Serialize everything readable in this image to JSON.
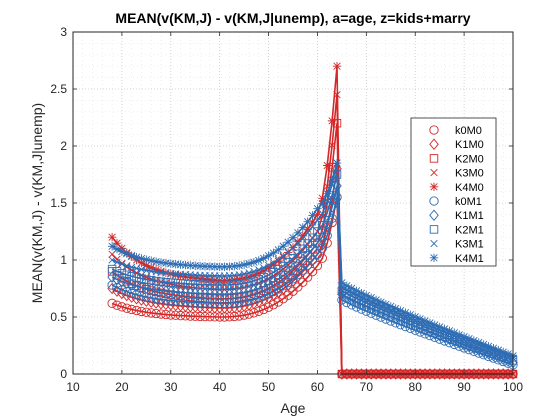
{
  "chart_data": {
    "type": "scatter",
    "title": "MEAN(v(KM,J) - v(KM,J|unemp), a=age, z=kids+marry",
    "xlabel": "Age",
    "ylabel": "MEAN(v(KM,J) - v(KM,J|unemp)",
    "xlim": [
      10,
      100
    ],
    "ylim": [
      0,
      3
    ],
    "xticks": [
      10,
      20,
      30,
      40,
      50,
      60,
      70,
      80,
      90,
      100
    ],
    "yticks": [
      0,
      0.5,
      1,
      1.5,
      2,
      2.5,
      3
    ],
    "grid": "on (dotted, with minor)",
    "legend_position": "right",
    "colors": {
      "M0": "#d62728",
      "M1": "#2e6db4"
    },
    "x_range": [
      18,
      100
    ],
    "series": [
      {
        "name": "k0M0",
        "marker": "circle",
        "color": "#d62728",
        "start": 0.62,
        "flat": 0.5,
        "pre": 0.95,
        "peak": 1.55,
        "post": 0.0,
        "end": 0.0
      },
      {
        "name": "K1M0",
        "marker": "diamond",
        "color": "#d62728",
        "start": 0.75,
        "flat": 0.58,
        "pre": 1.05,
        "peak": 1.8,
        "post": 0.0,
        "end": 0.0
      },
      {
        "name": "K2M0",
        "marker": "square",
        "color": "#d62728",
        "start": 0.9,
        "flat": 0.66,
        "pre": 1.15,
        "peak": 2.2,
        "post": 0.0,
        "end": 0.0
      },
      {
        "name": "K3M0",
        "marker": "x",
        "color": "#d62728",
        "start": 1.05,
        "flat": 0.74,
        "pre": 1.25,
        "peak": 2.45,
        "post": 0.0,
        "end": 0.0
      },
      {
        "name": "K4M0",
        "marker": "asterisk",
        "color": "#d62728",
        "start": 1.2,
        "flat": 0.82,
        "pre": 1.4,
        "peak": 2.7,
        "post": 0.0,
        "end": 0.0
      },
      {
        "name": "k0M1",
        "marker": "circle",
        "color": "#2e6db4",
        "start": 0.78,
        "flat": 0.62,
        "pre": 1.05,
        "peak": 1.55,
        "post": 0.65,
        "end": 0.08
      },
      {
        "name": "K1M1",
        "marker": "diamond",
        "color": "#2e6db4",
        "start": 0.85,
        "flat": 0.7,
        "pre": 1.15,
        "peak": 1.65,
        "post": 0.7,
        "end": 0.1
      },
      {
        "name": "K2M1",
        "marker": "square",
        "color": "#2e6db4",
        "start": 0.92,
        "flat": 0.78,
        "pre": 1.25,
        "peak": 1.75,
        "post": 0.73,
        "end": 0.12
      },
      {
        "name": "K3M1",
        "marker": "x",
        "color": "#2e6db4",
        "start": 1.0,
        "flat": 0.86,
        "pre": 1.35,
        "peak": 1.85,
        "post": 0.76,
        "end": 0.14
      },
      {
        "name": "K4M1",
        "marker": "asterisk",
        "color": "#2e6db4",
        "start": 1.12,
        "flat": 0.94,
        "pre": 1.45,
        "peak": 1.85,
        "post": 0.8,
        "end": 0.16
      }
    ]
  }
}
